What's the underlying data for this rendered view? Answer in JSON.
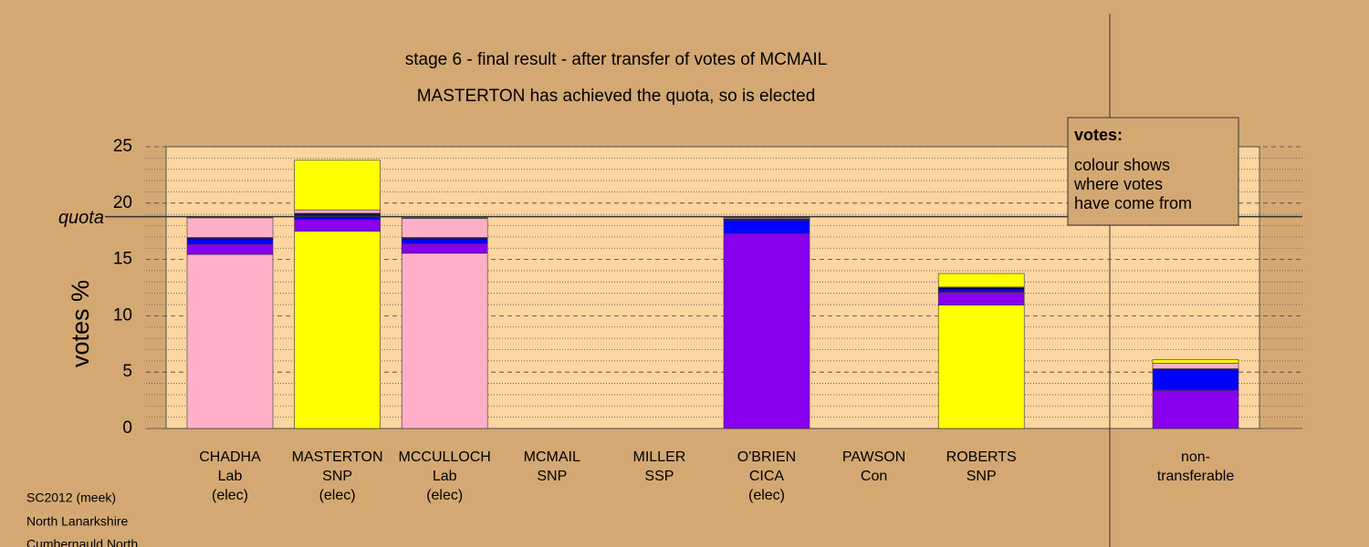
{
  "chart_data": {
    "type": "bar",
    "stacked": true,
    "title": "stage 6 - final result - after transfer of votes of MCMAIL",
    "subtitle": "MASTERTON has achieved the quota, so is elected",
    "y_label": "votes %",
    "ylim": [
      0,
      25
    ],
    "yticks": [
      0,
      5,
      10,
      15,
      20,
      25
    ],
    "minor_yticks": [
      1,
      2,
      3,
      4,
      6,
      7,
      8,
      9,
      11,
      12,
      13,
      14,
      16,
      17,
      18,
      19,
      21,
      22,
      23,
      24
    ],
    "grid": true,
    "quota": {
      "label": "quota",
      "value": 18.8
    },
    "categories": [
      [
        "CHADHA",
        "Lab",
        "(elec)"
      ],
      [
        "MASTERTON",
        "SNP",
        "(elec)"
      ],
      [
        "MCCULLOCH",
        "Lab",
        "(elec)"
      ],
      [
        "MCMAIL",
        "SNP"
      ],
      [
        "MILLER",
        "SSP"
      ],
      [
        "O'BRIEN",
        "CICA",
        "(elec)"
      ],
      [
        "PAWSON",
        "Con"
      ],
      [
        "ROBERTS",
        "SNP"
      ],
      [
        "non-",
        "transferable"
      ]
    ],
    "series": [
      {
        "color": "#ffb0c8",
        "values": [
          15.45,
          0,
          15.55,
          0,
          0,
          0,
          0,
          0,
          0
        ]
      },
      {
        "color": "#ffff00",
        "values": [
          0,
          17.5,
          0,
          0,
          0,
          0,
          0,
          10.95,
          0
        ]
      },
      {
        "color": "#8800ee",
        "values": [
          0.9,
          1.05,
          0.85,
          0,
          0,
          17.3,
          0,
          1.15,
          3.4
        ]
      },
      {
        "color": "#0000ff",
        "values": [
          0.5,
          0.4,
          0.45,
          0,
          0,
          1.2,
          0,
          0.2,
          1.8
        ]
      },
      {
        "color": "#000066",
        "values": [
          0.1,
          0.15,
          0.1,
          0,
          0,
          0.1,
          0,
          0.2,
          0.1
        ]
      },
      {
        "color": "#ffb0c8",
        "values": [
          1.75,
          0.3,
          1.7,
          0,
          0,
          0.1,
          0,
          0.05,
          0.5
        ]
      },
      {
        "color": "#ffff00",
        "values": [
          0.05,
          4.4,
          0.05,
          0,
          0,
          0.05,
          0,
          1.2,
          0.3
        ]
      }
    ],
    "note": {
      "heading": "votes:",
      "lines": [
        "colour shows",
        "where votes",
        "have come from"
      ]
    },
    "footer": [
      "SC2012 (meek)",
      "North Lanarkshire",
      "Cumbernauld North"
    ]
  }
}
